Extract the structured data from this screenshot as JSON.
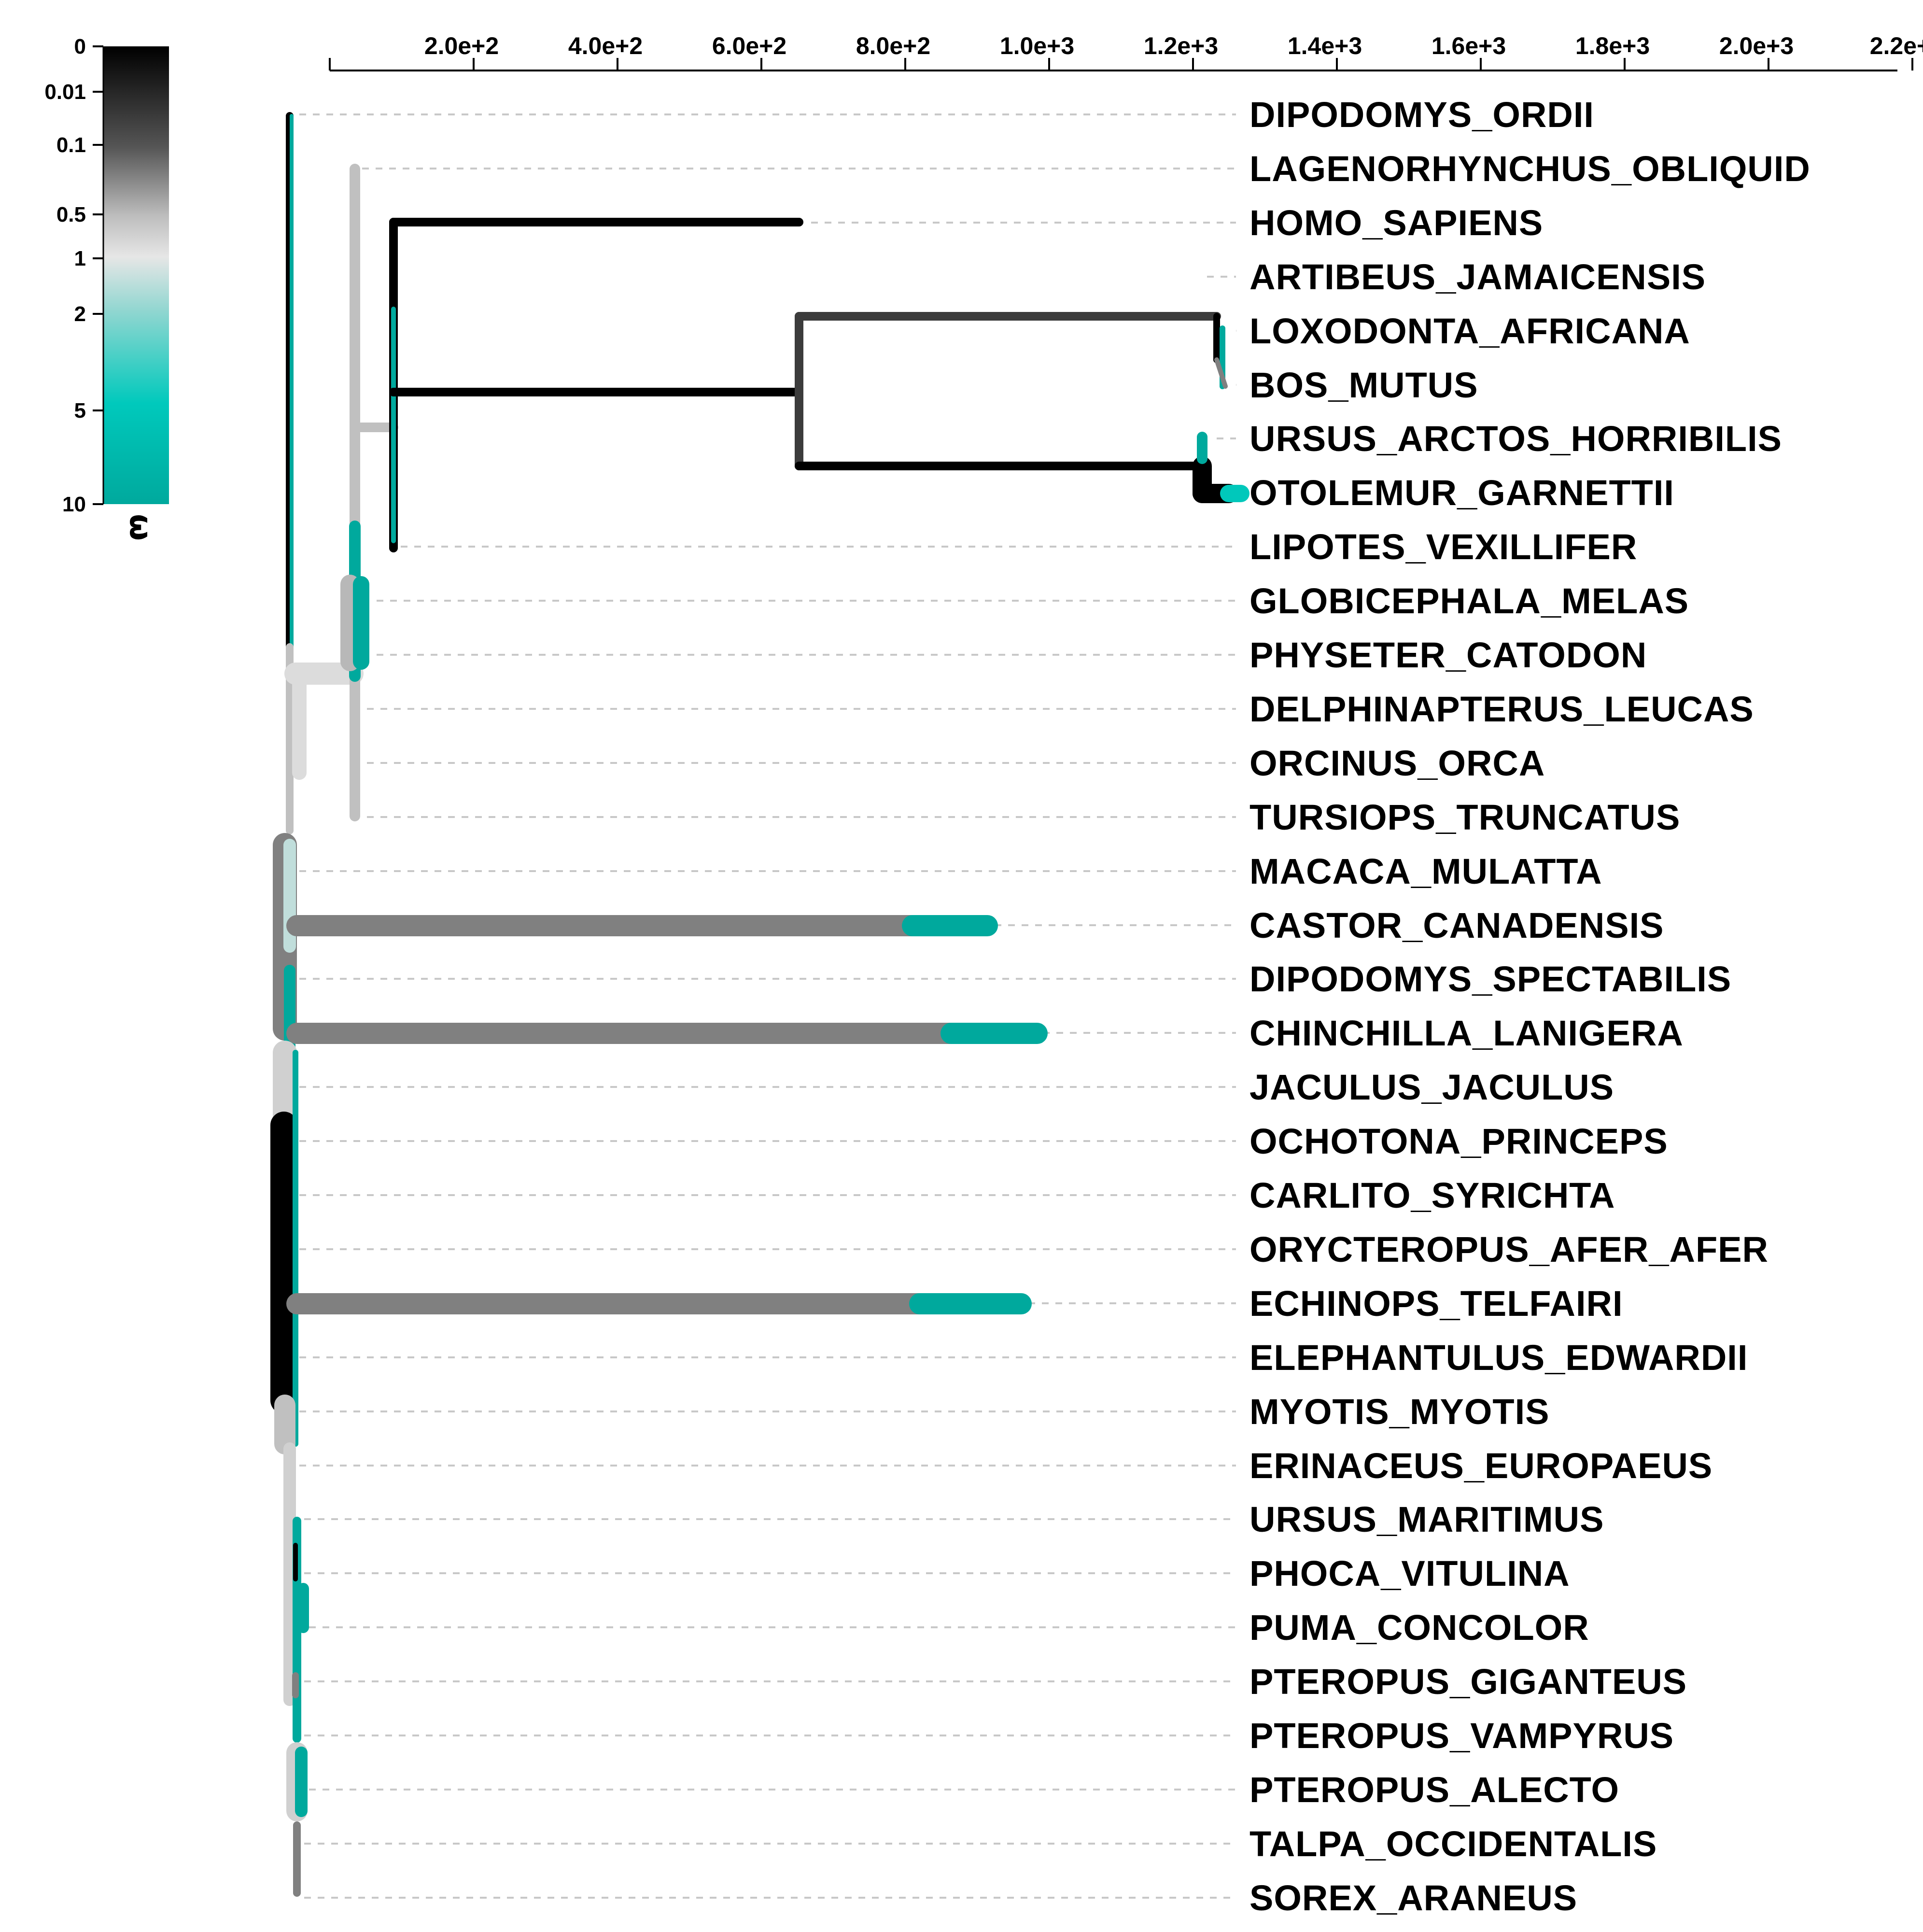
{
  "axis": {
    "tick_labels": [
      "2.0e+2",
      "4.0e+2",
      "6.0e+2",
      "8.0e+2",
      "1.0e+3",
      "1.2e+3",
      "1.4e+3",
      "1.6e+3",
      "1.8e+3",
      "2.0e+3",
      "2.2e+"
    ]
  },
  "legend": {
    "title": "ω",
    "labels": [
      "0",
      "0.01",
      "0.1",
      "0.5",
      "1",
      "2",
      "5",
      "10"
    ]
  },
  "taxa": [
    "DIPODOMYS_ORDII",
    "LAGENORHYNCHUS_OBLIQUID",
    "HOMO_SAPIENS",
    "ARTIBEUS_JAMAICENSIS",
    "LOXODONTA_AFRICANA",
    "BOS_MUTUS",
    "URSUS_ARCTOS_HORRIBILIS",
    "OTOLEMUR_GARNETTII",
    "LIPOTES_VEXILLIFER",
    "GLOBICEPHALA_MELAS",
    "PHYSETER_CATODON",
    "DELPHINAPTERUS_LEUCAS",
    "ORCINUS_ORCA",
    "TURSIOPS_TRUNCATUS",
    "MACACA_MULATTA",
    "CASTOR_CANADENSIS",
    "DIPODOMYS_SPECTABILIS",
    "CHINCHILLA_LANIGERA",
    "JACULUS_JACULUS",
    "OCHOTONA_PRINCEPS",
    "CARLITO_SYRICHTA",
    "ORYCTEROPUS_AFER_AFER",
    "ECHINOPS_TELFAIRI",
    "ELEPHANTULUS_EDWARDII",
    "MYOTIS_MYOTIS",
    "ERINACEUS_EUROPAEUS",
    "URSUS_MARITIMUS",
    "PHOCA_VITULINA",
    "PUMA_CONCOLOR",
    "PTEROPUS_GIGANTEUS",
    "PTEROPUS_VAMPYRUS",
    "PTEROPUS_ALECTO",
    "TALPA_OCCIDENTALIS",
    "SOREX_ARANEUS"
  ],
  "colors": {
    "black": "#000000",
    "dark_gray": "#3c3c3c",
    "mid_gray": "#808080",
    "light_gray": "#c0c0c0",
    "pale_gray": "#dcdcdc",
    "teal": "#00a99d",
    "teal_bright": "#00c8bb",
    "guide": "#c8c8c8"
  }
}
